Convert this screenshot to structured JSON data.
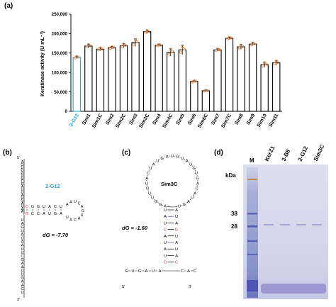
{
  "panels": {
    "a": "(a)",
    "b": "(b)",
    "c": "(c)",
    "d": "(d)"
  },
  "chart_data": {
    "type": "bar",
    "ylabel": "Keratinase activity (U mL⁻¹)",
    "ylim": [
      0,
      250000
    ],
    "yticks": [
      0,
      50000,
      100000,
      150000,
      200000,
      250000
    ],
    "ytick_labels": [
      "0",
      "50,000",
      "100,000",
      "150,000",
      "200,000",
      "250,000"
    ],
    "categories": [
      "2-G12",
      "Sim1",
      "Sim1C",
      "Sim2",
      "Sim2C",
      "Sim3",
      "Sim3C",
      "Sim4",
      "Sim4C",
      "Sim5",
      "Sim6",
      "Sim6C",
      "Sim7",
      "Sim7C",
      "Sim8",
      "Sim9",
      "Sim10",
      "Sim11"
    ],
    "values": [
      139000,
      168000,
      160000,
      164000,
      169000,
      177000,
      205000,
      170000,
      152000,
      158000,
      77000,
      53000,
      158000,
      188000,
      166000,
      173000,
      120000,
      125000
    ],
    "errors": [
      3000,
      5000,
      4000,
      3000,
      5000,
      10000,
      4000,
      3000,
      10000,
      12000,
      2000,
      2000,
      3000,
      3000,
      6000,
      4000,
      7000,
      6000
    ],
    "highlight_category": "2-G12",
    "highlight_color": "#29a3d6",
    "point_color": "#d9874a"
  },
  "structure_b": {
    "name": "2-G12",
    "energy": "dG = -7.70",
    "five_prime": "5'",
    "three_prime": "3'",
    "top_seq": [
      "A",
      "G",
      "U",
      "G",
      "G",
      "U",
      "U",
      "C",
      "U",
      "A",
      "U",
      "U",
      "A",
      "U",
      "G",
      "A",
      "U",
      "A",
      "A"
    ],
    "stem_left": [
      "C",
      "G",
      "G",
      "U",
      "A",
      "C",
      "U"
    ],
    "stem_right": [
      "G",
      "C",
      "C",
      "A",
      "U",
      "G",
      "A"
    ],
    "loop_seq": [
      "A",
      "A",
      "U",
      "C",
      "A",
      "G",
      "U",
      "A",
      "C",
      "A",
      "U"
    ],
    "bottom_seq": [
      "U",
      "A",
      "G",
      "U",
      "A",
      "U",
      "A",
      "A",
      "U",
      "U",
      "C",
      "G",
      "A",
      "A",
      "U",
      "U",
      "G",
      "A",
      "A",
      "C",
      "U"
    ]
  },
  "structure_c": {
    "name": "Sim3C",
    "energy": "dG = -1.60",
    "five_prime": "5'",
    "three_prime": "3'",
    "loop_seq": [
      "A",
      "G",
      "G",
      "U",
      "U",
      "G",
      "U",
      "A",
      "C",
      "U",
      "A",
      "U",
      "G",
      "A",
      "U",
      "G",
      "U",
      "A",
      "U",
      "G",
      "U",
      "G",
      "A",
      "C",
      "A",
      "U",
      "A",
      "G",
      "U"
    ],
    "stem_left": [
      "U",
      "A",
      "U",
      "C",
      "A",
      "U",
      "A",
      "U",
      "G"
    ],
    "stem_right": [
      "A",
      "U",
      "A",
      "G",
      "U",
      "A",
      "U",
      "A",
      "C"
    ],
    "bottom_left": [
      "G",
      "U",
      "G",
      "A",
      "U",
      "A"
    ],
    "bottom_right": [
      "C",
      "A",
      "C"
    ]
  },
  "gel": {
    "lanes": [
      "M",
      "KerZ1",
      "3-B8",
      "2-G12",
      "Sim3C"
    ],
    "kda_label": "kDa",
    "markers": [
      "38",
      "28"
    ]
  }
}
